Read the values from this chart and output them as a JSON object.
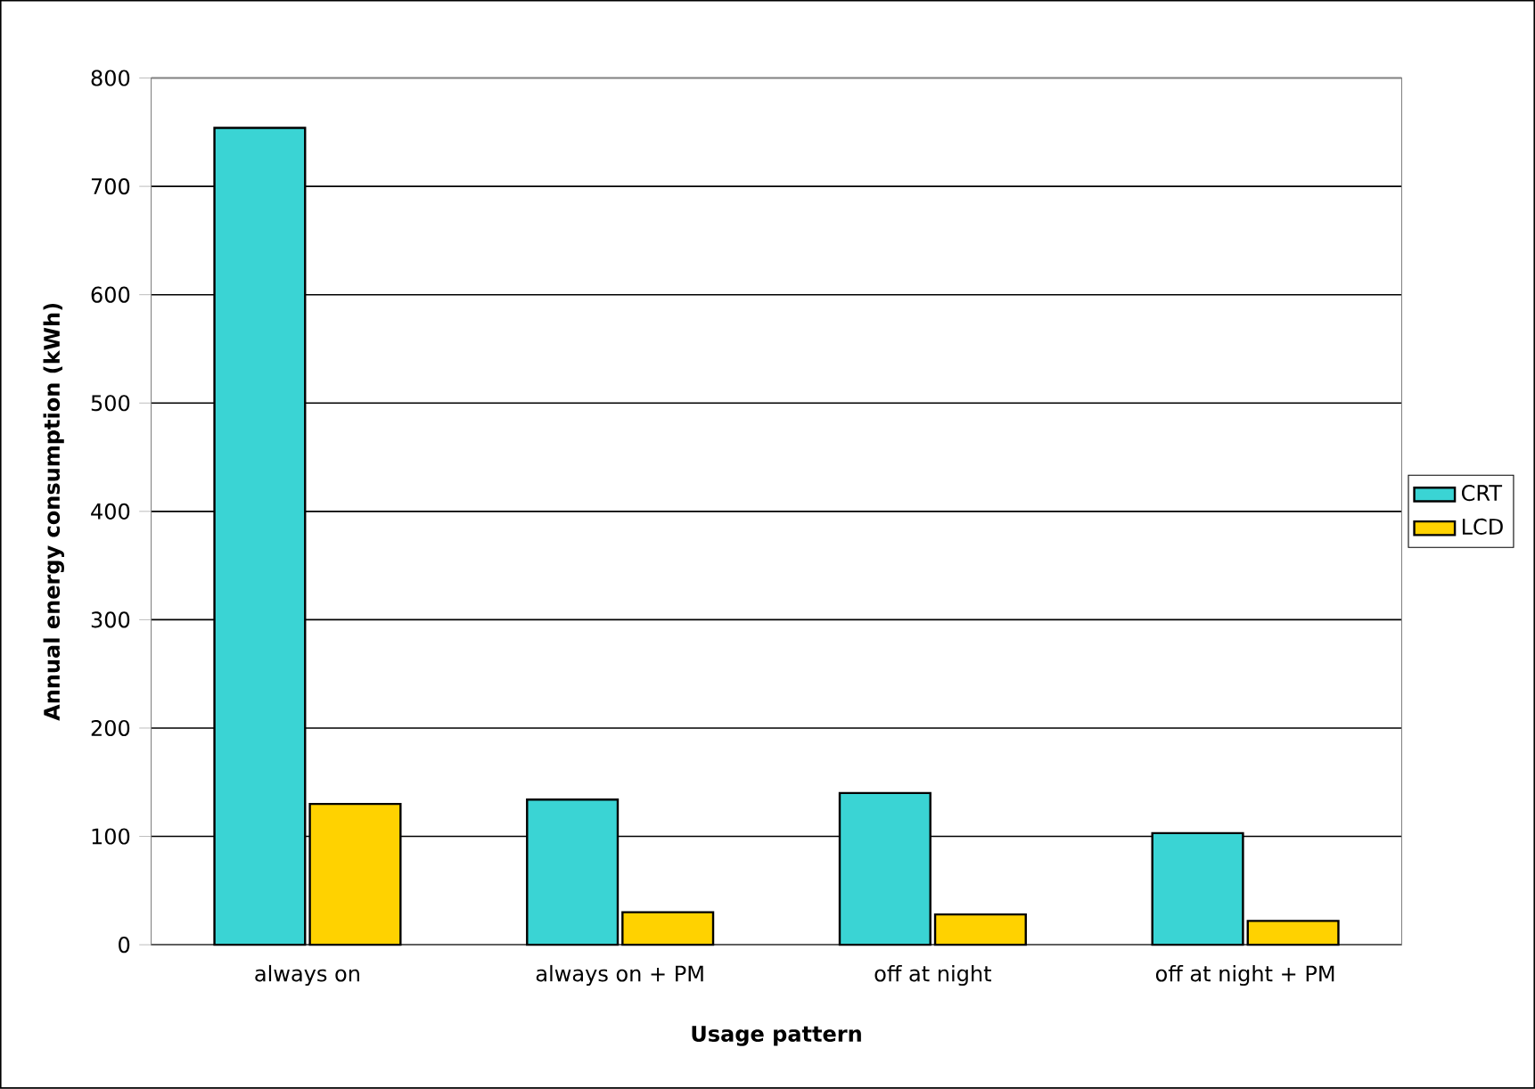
{
  "chart_data": {
    "type": "bar",
    "xlabel": "Usage pattern",
    "ylabel": "Annual energy consumption (kWh)",
    "categories": [
      "always on",
      "always on + PM",
      "off at night",
      "off at night + PM"
    ],
    "series": [
      {
        "name": "CRT",
        "color": "#3ad4d4",
        "values": [
          754,
          134,
          140,
          103
        ]
      },
      {
        "name": "LCD",
        "color": "#ffd200",
        "values": [
          130,
          30,
          28,
          22
        ]
      }
    ],
    "ylim": [
      0,
      800
    ],
    "yticks": [
      0,
      100,
      200,
      300,
      400,
      500,
      600,
      700,
      800
    ],
    "grid": "y",
    "legend": "right"
  }
}
